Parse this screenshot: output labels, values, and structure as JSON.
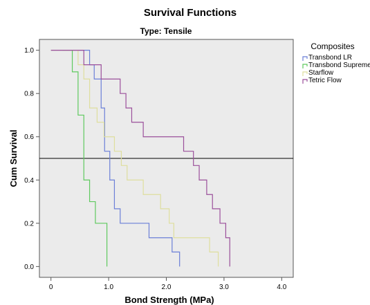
{
  "chart_data": {
    "type": "line",
    "step": true,
    "title": "Survival Functions",
    "subtitle": "Type: Tensile",
    "xlabel": "Bond Strength (MPa)",
    "ylabel": "Cum Survival",
    "xlim": [
      -0.2,
      4.2
    ],
    "ylim": [
      -0.05,
      1.05
    ],
    "xticks": [
      0.0,
      1.0,
      2.0,
      3.0,
      4.0
    ],
    "xtick_labels": [
      "0",
      "1.0",
      "2.0",
      "3.0",
      "4.0"
    ],
    "yticks": [
      0.0,
      0.2,
      0.4,
      0.6,
      0.8,
      1.0
    ],
    "ytick_labels": [
      "0.0",
      "0.2",
      "0.4",
      "0.6",
      "0.8",
      "1.0"
    ],
    "reference_line_y": 0.5,
    "grid": false,
    "plot_background": "#ebebeb",
    "legend": {
      "title": "Composites",
      "position": "right"
    },
    "series": [
      {
        "name": "Transbond LR",
        "color": "#6b7fd7",
        "x": [
          0.0,
          0.67,
          0.75,
          0.87,
          0.93,
          1.02,
          1.1,
          1.2,
          1.7,
          2.1,
          2.23
        ],
        "y": [
          1.0,
          0.933,
          0.867,
          0.733,
          0.533,
          0.4,
          0.267,
          0.2,
          0.133,
          0.067,
          0.0
        ]
      },
      {
        "name": "Transbond Supreme",
        "color": "#5ec95e",
        "x": [
          0.2,
          0.37,
          0.47,
          0.57,
          0.67,
          0.77,
          0.97
        ],
        "y": [
          1.0,
          0.9,
          0.7,
          0.4,
          0.3,
          0.2,
          0.0
        ]
      },
      {
        "name": "Starflow",
        "color": "#dede9e",
        "x": [
          0.0,
          0.47,
          0.57,
          0.67,
          0.8,
          0.92,
          1.1,
          1.22,
          1.32,
          1.6,
          1.9,
          2.05,
          2.13,
          2.75,
          2.9
        ],
        "y": [
          1.0,
          0.933,
          0.867,
          0.733,
          0.667,
          0.6,
          0.533,
          0.467,
          0.4,
          0.333,
          0.267,
          0.2,
          0.133,
          0.067,
          0.0
        ]
      },
      {
        "name": "Tetric Flow",
        "color": "#9b4f9b",
        "x": [
          0.0,
          0.57,
          0.87,
          1.2,
          1.3,
          1.4,
          1.6,
          2.3,
          2.47,
          2.57,
          2.7,
          2.8,
          2.93,
          3.03,
          3.1
        ],
        "y": [
          1.0,
          0.933,
          0.867,
          0.8,
          0.733,
          0.667,
          0.6,
          0.533,
          0.467,
          0.4,
          0.333,
          0.267,
          0.2,
          0.133,
          0.0
        ]
      }
    ]
  }
}
